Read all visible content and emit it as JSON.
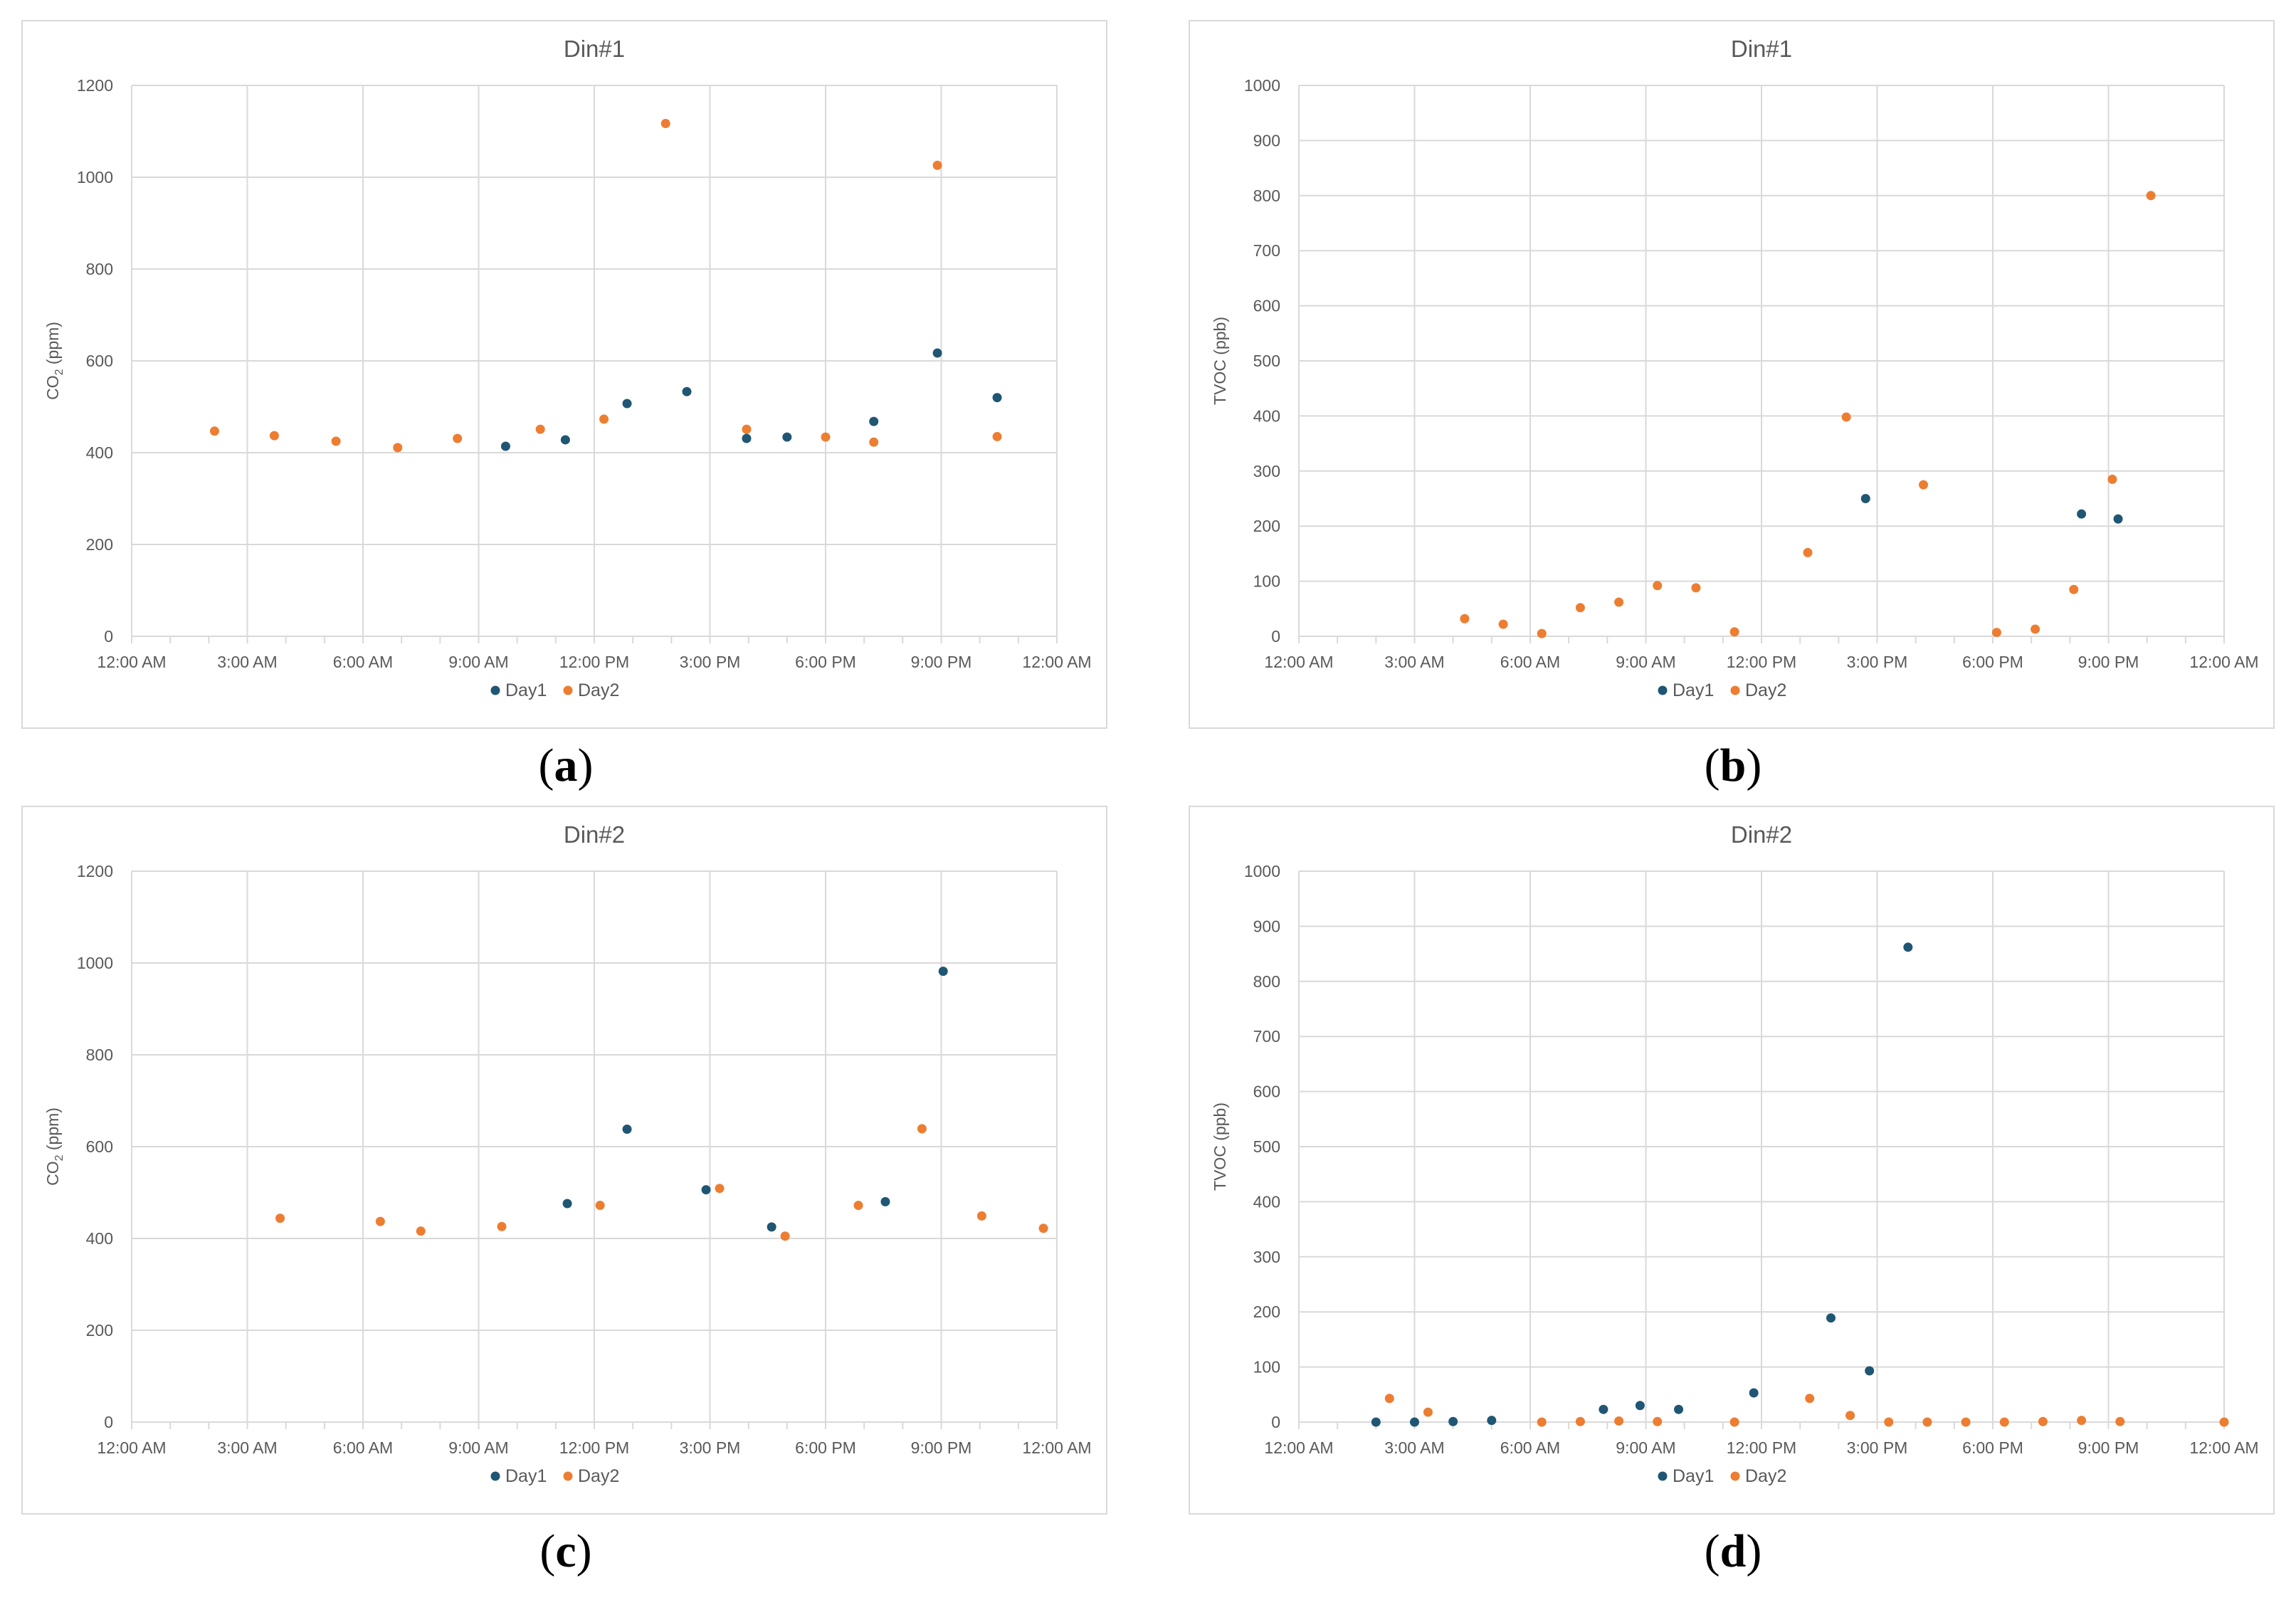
{
  "colors": {
    "day1": "#1f5673",
    "day2": "#ed7d31",
    "grid": "#d9d9d9",
    "text": "#595959"
  },
  "chart_data": [
    {
      "id": "a",
      "type": "scatter",
      "title": "Din#1",
      "ylabel_main": "CO",
      "ylabel_sub": "2",
      "ylabel_rest": " (ppm)",
      "xlim": [
        0,
        24
      ],
      "ylim": [
        0,
        1200
      ],
      "ystep": 200,
      "xtick_labels": [
        "12:00 AM",
        "3:00 AM",
        "6:00 AM",
        "9:00 AM",
        "12:00 PM",
        "3:00 PM",
        "6:00 PM",
        "9:00 PM",
        "12:00 AM"
      ],
      "ytick_labels": [
        "0",
        "200",
        "400",
        "600",
        "800",
        "1000",
        "1200"
      ],
      "legend": [
        "Day1",
        "Day2"
      ],
      "caption": "a",
      "series": [
        {
          "name": "Day1",
          "x": [
            9.7,
            11.25,
            12.85,
            14.4,
            15.95,
            17.0,
            19.25,
            20.9,
            22.45
          ],
          "y": [
            414,
            428,
            507,
            533,
            431,
            434,
            468,
            617,
            520
          ]
        },
        {
          "name": "Day2",
          "x": [
            2.15,
            3.7,
            5.3,
            6.9,
            8.45,
            10.6,
            12.25,
            13.85,
            15.95,
            18.0,
            19.25,
            20.9,
            22.45
          ],
          "y": [
            447,
            437,
            425,
            411,
            431,
            451,
            473,
            1117,
            451,
            434,
            423,
            1026,
            435
          ]
        }
      ]
    },
    {
      "id": "b",
      "type": "scatter",
      "title": "Din#1",
      "ylabel_main": "TVOC (ppb)",
      "ylabel_sub": "",
      "ylabel_rest": "",
      "xlim": [
        0,
        24
      ],
      "ylim": [
        0,
        1000
      ],
      "ystep": 100,
      "xtick_labels": [
        "12:00 AM",
        "3:00 AM",
        "6:00 AM",
        "9:00 AM",
        "12:00 PM",
        "3:00 PM",
        "6:00 PM",
        "9:00 PM",
        "12:00 AM"
      ],
      "ytick_labels": [
        "0",
        "100",
        "200",
        "300",
        "400",
        "500",
        "600",
        "700",
        "800",
        "900",
        "1000"
      ],
      "legend": [
        "Day1",
        "Day2"
      ],
      "caption": "b",
      "series": [
        {
          "name": "Day1",
          "x": [
            14.7,
            20.3,
            21.25
          ],
          "y": [
            250,
            222,
            213
          ]
        },
        {
          "name": "Day2",
          "x": [
            4.3,
            5.3,
            6.3,
            7.3,
            8.3,
            9.3,
            10.3,
            11.3,
            13.2,
            14.2,
            16.2,
            18.1,
            19.1,
            20.1,
            21.1,
            22.1
          ],
          "y": [
            32,
            22,
            5,
            52,
            62,
            92,
            88,
            8,
            152,
            398,
            275,
            7,
            13,
            85,
            285,
            800
          ]
        }
      ]
    },
    {
      "id": "c",
      "type": "scatter",
      "title": "Din#2",
      "ylabel_main": "CO",
      "ylabel_sub": "2",
      "ylabel_rest": " (ppm)",
      "xlim": [
        0,
        24
      ],
      "ylim": [
        0,
        1200
      ],
      "ystep": 200,
      "xtick_labels": [
        "12:00 AM",
        "3:00 AM",
        "6:00 AM",
        "9:00 AM",
        "12:00 PM",
        "3:00 PM",
        "6:00 PM",
        "9:00 PM",
        "12:00 AM"
      ],
      "ytick_labels": [
        "0",
        "200",
        "400",
        "600",
        "800",
        "1000",
        "1200"
      ],
      "legend": [
        "Day1",
        "Day2"
      ],
      "caption": "c",
      "series": [
        {
          "name": "Day1",
          "x": [
            11.3,
            12.85,
            14.9,
            16.6,
            19.55,
            21.05
          ],
          "y": [
            476,
            638,
            506,
            425,
            480,
            982
          ]
        },
        {
          "name": "Day2",
          "x": [
            3.85,
            6.45,
            7.5,
            9.6,
            12.15,
            15.25,
            16.95,
            18.85,
            20.5,
            22.05,
            23.65
          ],
          "y": [
            444,
            437,
            416,
            426,
            472,
            509,
            405,
            472,
            639,
            449,
            422
          ]
        }
      ]
    },
    {
      "id": "d",
      "type": "scatter",
      "title": "Din#2",
      "ylabel_main": "TVOC (ppb)",
      "ylabel_sub": "",
      "ylabel_rest": "",
      "xlim": [
        0,
        24
      ],
      "ylim": [
        0,
        1000
      ],
      "ystep": 100,
      "xtick_labels": [
        "12:00 AM",
        "3:00 AM",
        "6:00 AM",
        "9:00 AM",
        "12:00 PM",
        "3:00 PM",
        "6:00 PM",
        "9:00 PM",
        "12:00 AM"
      ],
      "ytick_labels": [
        "0",
        "100",
        "200",
        "300",
        "400",
        "500",
        "600",
        "700",
        "800",
        "900",
        "1000"
      ],
      "legend": [
        "Day1",
        "Day2"
      ],
      "caption": "d",
      "series": [
        {
          "name": "Day1",
          "x": [
            2.0,
            3.0,
            4.0,
            5.0,
            7.9,
            8.85,
            9.85,
            11.8,
            13.8,
            14.8,
            15.8
          ],
          "y": [
            0,
            0,
            1,
            3,
            23,
            30,
            23,
            53,
            189,
            93,
            862
          ]
        },
        {
          "name": "Day2",
          "x": [
            2.35,
            3.35,
            8.3,
            9.3,
            6.3,
            7.3,
            11.3,
            13.25,
            14.3,
            15.3,
            16.3,
            17.3,
            18.3,
            19.3,
            20.3,
            21.3,
            24.0
          ],
          "y": [
            43,
            18,
            2,
            1,
            0,
            1,
            0,
            43,
            12,
            0,
            0,
            0,
            0,
            1,
            3,
            1,
            0
          ]
        }
      ]
    }
  ]
}
